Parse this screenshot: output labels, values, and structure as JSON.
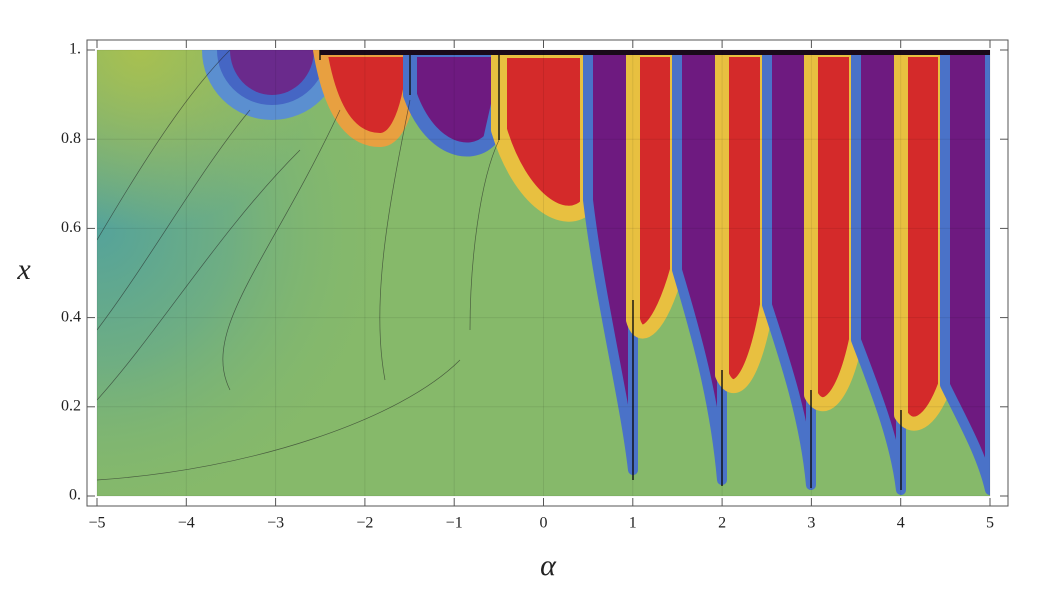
{
  "chart_data": {
    "type": "contour",
    "x_label": "α",
    "y_label": "x",
    "xlim": [
      -5,
      5
    ],
    "ylim": [
      0,
      1
    ],
    "xticks": [
      {
        "value": -5,
        "label": "−5"
      },
      {
        "value": -4,
        "label": "−4"
      },
      {
        "value": -3,
        "label": "−3"
      },
      {
        "value": -2,
        "label": "−2"
      },
      {
        "value": -1,
        "label": "−1"
      },
      0,
      1,
      2,
      3,
      4,
      5
    ],
    "yticks": [
      {
        "value": 0,
        "label": "0."
      },
      0.2,
      0.4,
      0.6,
      0.8,
      {
        "value": 1,
        "label": "1."
      }
    ],
    "grid": true
  }
}
